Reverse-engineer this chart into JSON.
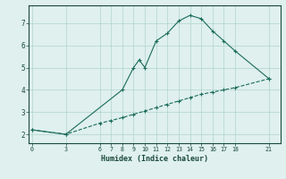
{
  "xlabel": "Humidex (Indice chaleur)",
  "bg_color": "#dff0ee",
  "line_color": "#1a6b5a",
  "line1_x": [
    0,
    3,
    8,
    9,
    9.5,
    10,
    11,
    12,
    13,
    14,
    15,
    16,
    17,
    18,
    21
  ],
  "line1_y": [
    2.2,
    2.0,
    4.0,
    5.0,
    5.35,
    5.0,
    6.2,
    6.55,
    7.1,
    7.35,
    7.2,
    6.65,
    6.2,
    5.75,
    4.5
  ],
  "line2_x": [
    0,
    3,
    6,
    7,
    8,
    9,
    10,
    11,
    12,
    13,
    14,
    15,
    16,
    17,
    18,
    21
  ],
  "line2_y": [
    2.2,
    2.0,
    2.5,
    2.62,
    2.75,
    2.9,
    3.05,
    3.2,
    3.35,
    3.5,
    3.65,
    3.8,
    3.9,
    4.0,
    4.1,
    4.5
  ],
  "xticks": [
    0,
    3,
    6,
    7,
    8,
    9,
    10,
    11,
    12,
    13,
    14,
    15,
    16,
    17,
    18,
    21
  ],
  "yticks": [
    2,
    3,
    4,
    5,
    6,
    7
  ],
  "ylim": [
    1.6,
    7.8
  ],
  "xlim": [
    -0.3,
    22.0
  ]
}
